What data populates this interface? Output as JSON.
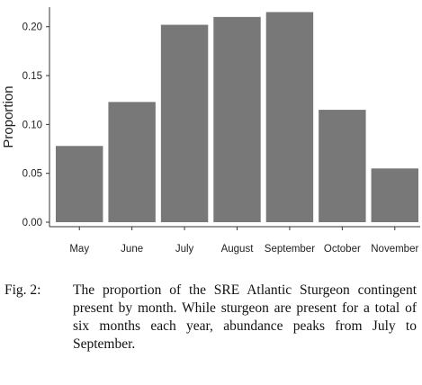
{
  "chart_data": {
    "type": "bar",
    "categories": [
      "May",
      "June",
      "July",
      "August",
      "September",
      "October",
      "November"
    ],
    "values": [
      0.078,
      0.123,
      0.202,
      0.21,
      0.215,
      0.115,
      0.055
    ],
    "xlabel": "",
    "ylabel": "Proportion",
    "ylim": [
      0,
      0.22
    ],
    "yticks": [
      0.0,
      0.05,
      0.1,
      0.15,
      0.2
    ],
    "ytick_labels": [
      "0.00",
      "0.05",
      "0.10",
      "0.15",
      "0.20"
    ],
    "grid": false,
    "bar_color": "#787878"
  },
  "caption": {
    "label": "Fig. 2:",
    "text": "The proportion of the SRE Atlantic Sturgeon contingent present by month. While sturgeon are present for a total of six months each year, abundance peaks from July to September."
  }
}
